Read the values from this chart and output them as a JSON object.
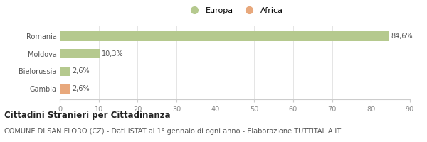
{
  "categories": [
    "Romania",
    "Moldova",
    "Bielorussia",
    "Gambia"
  ],
  "values": [
    84.6,
    10.3,
    2.6,
    2.6
  ],
  "bar_colors": [
    "#b5c98e",
    "#b5c98e",
    "#b5c98e",
    "#e8a87c"
  ],
  "labels": [
    "84,6%",
    "10,3%",
    "2,6%",
    "2,6%"
  ],
  "xlim": [
    0,
    90
  ],
  "xticks": [
    0,
    10,
    20,
    30,
    40,
    50,
    60,
    70,
    80,
    90
  ],
  "legend_items": [
    {
      "label": "Europa",
      "color": "#b5c98e"
    },
    {
      "label": "Africa",
      "color": "#e8a87c"
    }
  ],
  "title_bold": "Cittadini Stranieri per Cittadinanza",
  "subtitle": "COMUNE DI SAN FLORO (CZ) - Dati ISTAT al 1° gennaio di ogni anno - Elaborazione TUTTITALIA.IT",
  "background_color": "#ffffff",
  "bar_height": 0.55,
  "title_fontsize": 8.5,
  "subtitle_fontsize": 7,
  "label_fontsize": 7,
  "tick_fontsize": 7,
  "legend_fontsize": 8
}
